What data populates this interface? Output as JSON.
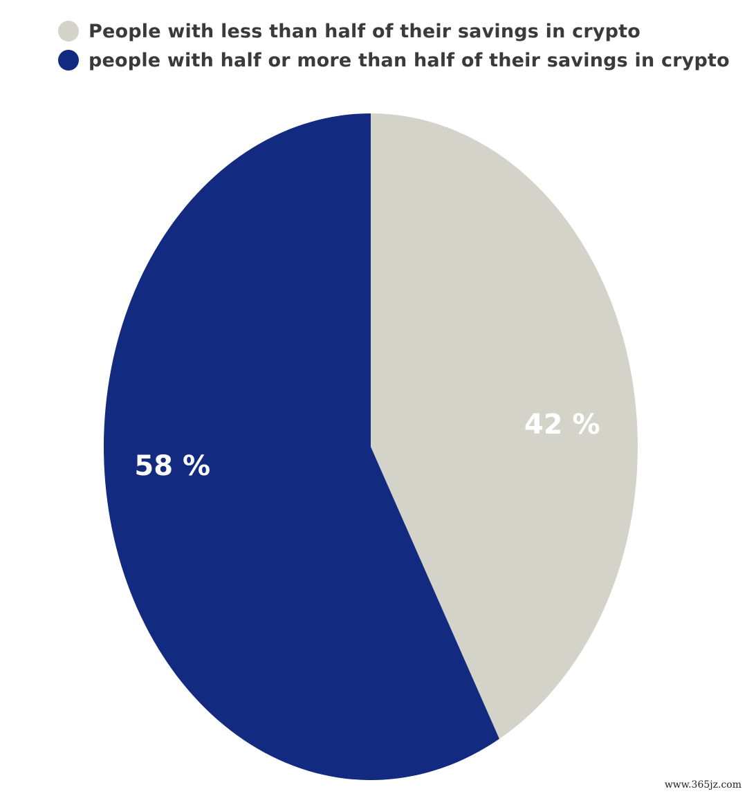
{
  "chart_data": {
    "type": "pie",
    "series": [
      {
        "name": "People with less than half of their savings in crypto",
        "value": 42,
        "label": "42 %",
        "color": "#d3d3c9"
      },
      {
        "name": "people with half or more than half of their savings in crypto",
        "value": 58,
        "label": "58 %",
        "color": "#122a80"
      }
    ],
    "legend_position": "top-left",
    "start_angle": "12 o'clock",
    "direction": "clockwise"
  },
  "watermark": "www.365jz.com"
}
